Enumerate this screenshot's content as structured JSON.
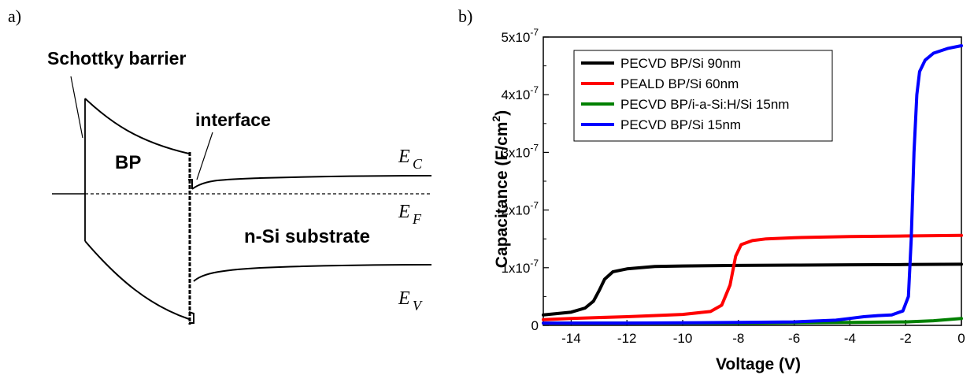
{
  "panel_a": {
    "label": "a)",
    "schottky_label": "Schottky barrier",
    "interface_label": "interface",
    "bp_label": "BP",
    "substrate_label": "n-Si substrate",
    "ec_main": "E",
    "ec_sub": "C",
    "ef_main": "E",
    "ef_sub": "F",
    "ev_main": "E",
    "ev_sub": "V"
  },
  "panel_b": {
    "label": "b)",
    "ylabel_main": "Capacitance (F/cm",
    "ylabel_sup": "2",
    "ylabel_end": ")",
    "xlabel": "Voltage (V)",
    "x_ticks": [
      "-14",
      "-12",
      "-10",
      "-8",
      "-6",
      "-4",
      "-2",
      "0"
    ],
    "y_ticks": [
      {
        "label": "0",
        "exp": ""
      },
      {
        "label": "1x10",
        "exp": "-7"
      },
      {
        "label": "2x10",
        "exp": "-7"
      },
      {
        "label": "3x10",
        "exp": "-7"
      },
      {
        "label": "4x10",
        "exp": "-7"
      },
      {
        "label": "5x10",
        "exp": "-7"
      }
    ]
  },
  "chart_data": {
    "type": "line",
    "xlabel": "Voltage (V)",
    "ylabel": "Capacitance (F/cm2)",
    "xlim": [
      -15,
      0
    ],
    "ylim": [
      0,
      5e-07
    ],
    "legend_position": "top-left",
    "series": [
      {
        "name": "PECVD BP/Si 90nm",
        "color": "#000000",
        "x": [
          -15,
          -14,
          -13.5,
          -13.2,
          -13.0,
          -12.8,
          -12.5,
          -12.0,
          -11,
          -10,
          -8,
          -6,
          -4,
          -2,
          0
        ],
        "y": [
          1.8e-08,
          2.3e-08,
          3e-08,
          4.2e-08,
          6e-08,
          8e-08,
          9.3e-08,
          9.8e-08,
          1.02e-07,
          1.03e-07,
          1.04e-07,
          1.045e-07,
          1.05e-07,
          1.055e-07,
          1.06e-07
        ]
      },
      {
        "name": "PEALD BP/Si 60nm",
        "color": "#ff0000",
        "x": [
          -15,
          -14,
          -12,
          -10,
          -9,
          -8.6,
          -8.3,
          -8.1,
          -7.9,
          -7.5,
          -7,
          -6,
          -4,
          -2,
          0
        ],
        "y": [
          1e-08,
          1.2e-08,
          1.5e-08,
          1.9e-08,
          2.4e-08,
          3.5e-08,
          7e-08,
          1.2e-07,
          1.4e-07,
          1.47e-07,
          1.5e-07,
          1.52e-07,
          1.54e-07,
          1.55e-07,
          1.56e-07
        ]
      },
      {
        "name": "PECVD BP/i-a-Si:H/Si 15nm",
        "color": "#008000",
        "x": [
          -15,
          -12,
          -8,
          -6,
          -4,
          -2,
          -1,
          0
        ],
        "y": [
          4e-09,
          4e-09,
          4e-09,
          4.5e-09,
          5e-09,
          6e-09,
          8e-09,
          1.2e-08
        ]
      },
      {
        "name": "PECVD BP/Si 15nm",
        "color": "#0000ff",
        "x": [
          -15,
          -12,
          -10,
          -8,
          -6,
          -4.5,
          -4,
          -3.5,
          -3,
          -2.5,
          -2.1,
          -1.9,
          -1.8,
          -1.7,
          -1.6,
          -1.5,
          -1.3,
          -1.0,
          -0.5,
          0
        ],
        "y": [
          4e-09,
          4e-09,
          4.5e-09,
          5e-09,
          6e-09,
          9e-09,
          1.2e-08,
          1.5e-08,
          1.7e-08,
          1.8e-08,
          2.5e-08,
          5e-08,
          1.5e-07,
          3e-07,
          4e-07,
          4.4e-07,
          4.6e-07,
          4.72e-07,
          4.8e-07,
          4.85e-07
        ]
      }
    ]
  }
}
